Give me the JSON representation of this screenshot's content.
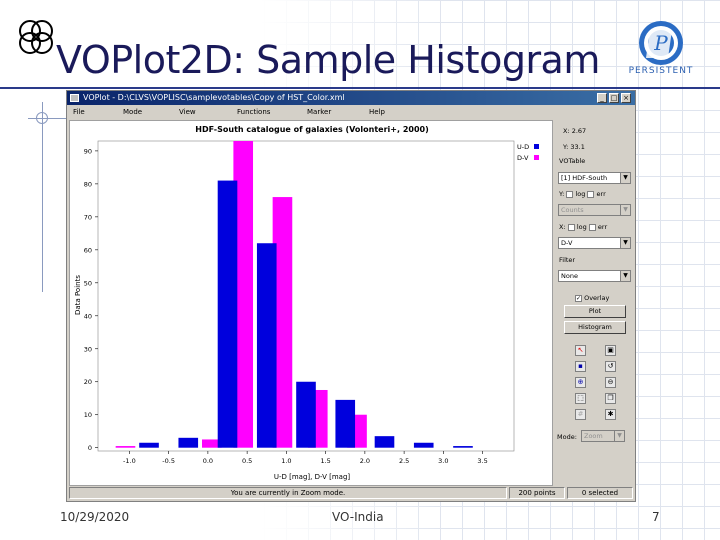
{
  "slide": {
    "title": "VOPlot2D: Sample Histogram",
    "logo_text": "PERSISTENT",
    "footer_date": "10/29/2020",
    "footer_center": "VO-India",
    "footer_page": "7"
  },
  "window": {
    "title": "VOPlot - D:\\CLVS\\VOPLISC\\samplevotables\\Copy of HST_Color.xml",
    "menu": [
      "File",
      "Mode",
      "View",
      "Functions",
      "Marker",
      "Help"
    ],
    "minimize_glyph": "_",
    "maximize_glyph": "□",
    "close_glyph": "×"
  },
  "sidepanel": {
    "readout_x": "X: 2.67",
    "readout_y": "Y: 33.1",
    "legend": [
      {
        "label": "U-D",
        "color": "#0000dd"
      },
      {
        "label": "D-V",
        "color": "#ff00ff"
      }
    ],
    "votable_label": "VOTable",
    "votable_value": "[1] HDF-South",
    "y_label": "Y:",
    "y_log": "log",
    "y_err": "err",
    "y_value": "Counts",
    "x_label": "X:",
    "x_log": "log",
    "x_err": "err",
    "x_value": "D-V",
    "filter_label": "Filter",
    "filter_value": "None",
    "overlay_label": "Overlay",
    "plot_button": "Plot",
    "histogram_button": "Histogram",
    "mode_label": "Mode:",
    "mode_value": "Zoom",
    "tools": [
      "cursor-icon",
      "save-icon",
      "print-icon",
      "reset-icon",
      "zoom-in-icon",
      "zoom-out-icon",
      "select-icon",
      "copy-icon",
      "grid-icon",
      "settings-icon"
    ]
  },
  "status": {
    "message": "You are currently in Zoom mode.",
    "points": "200 points",
    "selected": "0 selected"
  },
  "chart_data": {
    "type": "bar",
    "title": "HDF-South catalogue of galaxies (Volonteri+, 2000)",
    "xlabel": "U-D [mag], D-V [mag]",
    "ylabel": "Data Points",
    "xlim": [
      -1.4,
      3.9
    ],
    "ylim": [
      -1,
      93
    ],
    "yticks": [
      0,
      10,
      20,
      30,
      40,
      50,
      60,
      70,
      80,
      90
    ],
    "ytick_labels": [
      "0",
      "10",
      "20",
      "30",
      "40",
      "50",
      "60",
      "70",
      "80",
      "90"
    ],
    "xticks": [
      -1.0,
      -0.5,
      0.0,
      0.5,
      1.0,
      1.5,
      2.0,
      2.5,
      3.0,
      3.5
    ],
    "xtick_labels": [
      "-1.0",
      "-0.5",
      "0.0",
      "0.5",
      "1.0",
      "1.5",
      "2.0",
      "2.5",
      "3.0",
      "3.5"
    ],
    "series": [
      {
        "name": "U-D",
        "color": "#0000dd",
        "x": [
          -0.75,
          -0.25,
          0.25,
          0.75,
          1.25,
          1.75,
          2.25,
          2.75,
          3.25
        ],
        "values": [
          1.5,
          3,
          81,
          62,
          20,
          14.5,
          3.5,
          1.5,
          0.5
        ]
      },
      {
        "name": "D-V",
        "color": "#ff00ff",
        "x": [
          -1.05,
          0.05,
          0.45,
          0.95,
          1.4,
          1.9
        ],
        "values": [
          0.5,
          2.5,
          93,
          76,
          17.5,
          10
        ]
      }
    ]
  }
}
